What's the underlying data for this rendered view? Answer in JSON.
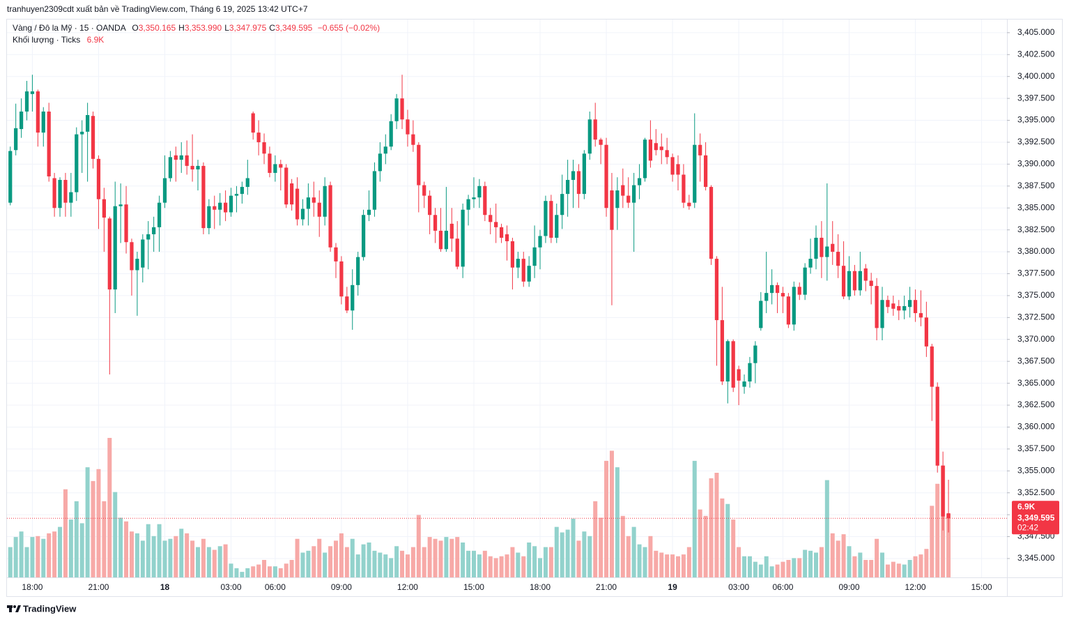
{
  "header": {
    "publisher": "tranhuyen2309cdt xuất bản về TradingView.com, Tháng 6 19, 2025 13:42 UTC+7"
  },
  "chart_data": {
    "type": "candlestick",
    "title": "Vàng / Đô la Mỹ · 15 · OANDA",
    "legend_items": [
      {
        "key": "O",
        "label": "3,350.165"
      },
      {
        "key": "H",
        "label": "3,353.990"
      },
      {
        "key": "L",
        "label": "3,347.975"
      },
      {
        "key": "C",
        "label": "3,349.595"
      }
    ],
    "change_label": "−0.655 (−0.02%)",
    "volume_title": "Khối lượng · Ticks",
    "volume_label": "6.9K",
    "countdown": "02:42",
    "colors": {
      "up": "#089981",
      "down": "#f23645",
      "volume_up": "#92d2cc",
      "volume_down": "#f7a9a7"
    },
    "grid": true,
    "xlim": [
      -0.6,
      180.6
    ],
    "xticks": [
      {
        "value": 4,
        "label": "18:00"
      },
      {
        "value": 16,
        "label": "21:00"
      },
      {
        "value": 28,
        "label": "18"
      },
      {
        "value": 40,
        "label": "03:00"
      },
      {
        "value": 48,
        "label": "06:00"
      },
      {
        "value": 60,
        "label": "09:00"
      },
      {
        "value": 72,
        "label": "12:00"
      },
      {
        "value": 84,
        "label": "15:00"
      },
      {
        "value": 96,
        "label": "18:00"
      },
      {
        "value": 108,
        "label": "21:00"
      },
      {
        "value": 120,
        "label": "19"
      },
      {
        "value": 132,
        "label": "03:00"
      },
      {
        "value": 140,
        "label": "06:00"
      },
      {
        "value": 152,
        "label": "09:00"
      },
      {
        "value": 164,
        "label": "12:00"
      },
      {
        "value": 176,
        "label": "15:00"
      }
    ],
    "ylim": [
      3342.85,
      3406.5
    ],
    "yticks": [
      {
        "value": 3345,
        "label": "3,345.000"
      },
      {
        "value": 3347.5,
        "label": "3,347.500"
      },
      {
        "value": 3350,
        "label": "3,350.000"
      },
      {
        "value": 3352.5,
        "label": "3,352.500"
      },
      {
        "value": 3355,
        "label": "3,355.000"
      },
      {
        "value": 3357.5,
        "label": "3,357.500"
      },
      {
        "value": 3360,
        "label": "3,360.000"
      },
      {
        "value": 3362.5,
        "label": "3,362.500"
      },
      {
        "value": 3365,
        "label": "3,365.000"
      },
      {
        "value": 3367.5,
        "label": "3,367.500"
      },
      {
        "value": 3370,
        "label": "3,370.000"
      },
      {
        "value": 3372.5,
        "label": "3,372.500"
      },
      {
        "value": 3375,
        "label": "3,375.000"
      },
      {
        "value": 3377.5,
        "label": "3,377.500"
      },
      {
        "value": 3380,
        "label": "3,380.000"
      },
      {
        "value": 3382.5,
        "label": "3,382.500"
      },
      {
        "value": 3385,
        "label": "3,385.000"
      },
      {
        "value": 3387.5,
        "label": "3,387.500"
      },
      {
        "value": 3390,
        "label": "3,390.000"
      },
      {
        "value": 3392.5,
        "label": "3,392.500"
      },
      {
        "value": 3395,
        "label": "3,395.000"
      },
      {
        "value": 3397.5,
        "label": "3,397.500"
      },
      {
        "value": 3400,
        "label": "3,400.000"
      },
      {
        "value": 3402.5,
        "label": "3,402.500"
      },
      {
        "value": 3405,
        "label": "3,405.000"
      }
    ],
    "open": [
      3385.6,
      3391.6,
      3394,
      3396,
      3398,
      3398.3,
      3393.6,
      3396,
      3388.4,
      3385,
      3388.2,
      3385.6,
      3386.8,
      3393.4,
      3393.7,
      3395.5,
      3390.6,
      3386,
      3383.8,
      3375.7,
      3385.2,
      3385.4,
      3381.1,
      3377.9,
      3378.2,
      3381.4,
      3382,
      3382.8,
      3385.6,
      3388.4,
      3391,
      3390.5,
      3391,
      3389.8,
      3389.4,
      3389.8,
      3382.7,
      3385.2,
      3384.8,
      3385.6,
      3384.5,
      3386.4,
      3386.6,
      3387.4,
      3395.8,
      3393.6,
      3392.5,
      3391.2,
      3389,
      3390,
      3389.6,
      3387.8,
      3387.2,
      3383.7,
      3384.9,
      3386.2,
      3385.6,
      3384,
      3387.6,
      3380.5,
      3378.9,
      3374.9,
      3373.3,
      3376.2,
      3379.4,
      3384.2,
      3384.8,
      3389.2,
      3391.2,
      3392,
      3394.9,
      3397.5,
      3395.1,
      3393.4,
      3392.2,
      3387.6,
      3386.4,
      3384.2,
      3382.4,
      3380.3,
      3383.2,
      3381.5,
      3378.3,
      3384.8,
      3386,
      3386.2,
      3387.5,
      3384.2,
      3383.4,
      3382.8,
      3382,
      3381.2,
      3378.2,
      3379.2,
      3376.6,
      3378.4,
      3380.5,
      3381.8,
      3385.8,
      3381.6,
      3384.2,
      3386.6,
      3388.2,
      3389.2,
      3386.6,
      3391.2,
      3395.1,
      3392.8,
      3392.2,
      3387,
      3385,
      3387.6,
      3386.4,
      3385.6,
      3387.6,
      3388.4,
      3392.8,
      3392.4,
      3392,
      3391.6,
      3390.8,
      3390,
      3388.8,
      3385.6,
      3385.6,
      3392.2,
      3391,
      3387.4,
      3379.2,
      3372.2,
      3365.2,
      3369.8,
      3366.6,
      3364.6,
      3365.2,
      3367.3,
      3371.3,
      3374.4,
      3375.3,
      3376.2,
      3375.3,
      3374.9,
      3371.7,
      3376,
      3375.1,
      3378.2,
      3379.2,
      3381.6,
      3379.4,
      3380.9,
      3380,
      3378.4,
      3374.9,
      3377.8,
      3375.6,
      3378.1,
      3376.7,
      3376.1,
      3371.3,
      3374.5,
      3374.1,
      3373.8,
      3373.3,
      3373.7,
      3374.5,
      3373,
      3372.5,
      3369.2,
      3364.6,
      3355.6,
      3350.165
    ],
    "high": [
      3392,
      3396.9,
      3397.5,
      3399.5,
      3400.2,
      3398.5,
      3396.5,
      3397,
      3389,
      3388.5,
      3389,
      3389,
      3394.2,
      3395,
      3397,
      3396,
      3391,
      3387.3,
      3384,
      3388,
      3387.8,
      3387.5,
      3381.5,
      3380,
      3382,
      3383.5,
      3384,
      3386.4,
      3391,
      3391.5,
      3392,
      3392.5,
      3392.7,
      3393.4,
      3390.5,
      3390.2,
      3386,
      3386.4,
      3386.7,
      3387,
      3387.3,
      3387.5,
      3388,
      3390.5,
      3396,
      3395,
      3393.5,
      3392,
      3391,
      3390.5,
      3390,
      3388.3,
      3388.5,
      3386,
      3387.8,
      3388,
      3387,
      3388.5,
      3388,
      3381,
      3379.5,
      3376,
      3378,
      3380,
      3384.8,
      3387,
      3390.2,
      3392.5,
      3393.4,
      3395.7,
      3398,
      3400.2,
      3396.2,
      3395,
      3392.5,
      3388,
      3387,
      3385,
      3385,
      3387.4,
      3385,
      3383.5,
      3385.5,
      3386.5,
      3388.5,
      3388.3,
      3388,
      3385,
      3385.5,
      3383.2,
      3383,
      3381.6,
      3380,
      3380,
      3379.5,
      3383,
      3382.5,
      3386.4,
      3386.5,
      3385.5,
      3388.8,
      3390.5,
      3390.5,
      3390,
      3391.6,
      3396,
      3397,
      3393,
      3393,
      3389,
      3388.5,
      3389.5,
      3388.5,
      3389,
      3390,
      3393,
      3395,
      3394,
      3393.5,
      3393,
      3391.2,
      3391,
      3390,
      3386.5,
      3395.8,
      3393.5,
      3392.5,
      3387.6,
      3379.5,
      3376,
      3370,
      3370,
      3367,
      3366,
      3368,
      3369.8,
      3375.4,
      3380,
      3378,
      3376.5,
      3376,
      3375.3,
      3376.6,
      3376.5,
      3378.7,
      3381.5,
      3383,
      3383.5,
      3387.8,
      3383.5,
      3382,
      3381.2,
      3379.5,
      3378.5,
      3380,
      3378.6,
      3377.6,
      3377,
      3376,
      3375,
      3375,
      3374.5,
      3375,
      3376,
      3375.7,
      3375.6,
      3374.3,
      3369.5,
      3365.1,
      3357.2,
      3353.99
    ],
    "low": [
      3385.3,
      3391,
      3393,
      3395,
      3396,
      3392,
      3392,
      3388,
      3384,
      3384,
      3384,
      3384,
      3385.8,
      3389,
      3388,
      3389.5,
      3382.6,
      3380,
      3366,
      3373,
      3381,
      3379.8,
      3375,
      3372.7,
      3376.5,
      3378,
      3380,
      3380,
      3385,
      3388,
      3388,
      3389,
      3388.8,
      3388,
      3387,
      3382,
      3382,
      3382.6,
      3383,
      3383.5,
      3384,
      3384.5,
      3385.5,
      3386.5,
      3392.8,
      3391,
      3390,
      3388.5,
      3388,
      3387,
      3385,
      3384.7,
      3383,
      3383,
      3383,
      3384,
      3381.7,
      3383,
      3380,
      3377,
      3374,
      3373,
      3371.1,
      3375,
      3379,
      3383.5,
      3384,
      3388,
      3390,
      3391.6,
      3394,
      3394,
      3392,
      3391.4,
      3384.5,
      3385,
      3382,
      3381,
      3380,
      3380,
      3380,
      3378,
      3377,
      3383,
      3385,
      3385,
      3383.5,
      3382,
      3381,
      3381,
      3379,
      3375.7,
      3377,
      3376,
      3376,
      3377,
      3378,
      3381,
      3381,
      3381,
      3382.6,
      3384,
      3385,
      3385,
      3386,
      3390.5,
      3392,
      3390,
      3384,
      3373.9,
      3382.5,
      3385,
      3385,
      3380,
      3386,
      3388,
      3389.6,
      3391,
      3390,
      3390,
      3388,
      3387,
      3385,
      3384.8,
      3385,
      3388,
      3387,
      3378.5,
      3367,
      3364.8,
      3362.7,
      3364,
      3362.5,
      3363.8,
      3364.5,
      3365,
      3371,
      3373,
      3374,
      3373,
      3373,
      3371.3,
      3371,
      3374.5,
      3374.5,
      3377.5,
      3378,
      3377,
      3376.7,
      3378.5,
      3377,
      3374.6,
      3374.5,
      3375,
      3375,
      3375.5,
      3374,
      3369.9,
      3369.9,
      3373,
      3372.7,
      3372.2,
      3372.3,
      3372.5,
      3372,
      3371.5,
      3368,
      3360.7,
      3354.8,
      3348.2,
      3347.975
    ],
    "close": [
      3391.5,
      3394.1,
      3396,
      3398.3,
      3398.3,
      3393.6,
      3396,
      3388.6,
      3385,
      3388.2,
      3385.6,
      3386.8,
      3393.4,
      3393.7,
      3395.6,
      3390.6,
      3386,
      3383.9,
      3375.7,
      3385.2,
      3385.4,
      3381.1,
      3377.9,
      3379.2,
      3381.4,
      3382,
      3382.8,
      3385.6,
      3388.4,
      3390.8,
      3390.5,
      3391,
      3389.8,
      3389.4,
      3389.8,
      3382.7,
      3385.2,
      3384.8,
      3385.6,
      3384.5,
      3386.4,
      3386.6,
      3387.4,
      3388.4,
      3393.6,
      3392.5,
      3391.2,
      3389,
      3390,
      3389.6,
      3385.4,
      3385.4,
      3383.7,
      3384.9,
      3386.2,
      3385.6,
      3384,
      3387.5,
      3380.5,
      3378.9,
      3374.9,
      3373.3,
      3376.2,
      3379.4,
      3384.2,
      3384.8,
      3389.2,
      3391.2,
      3392,
      3394.9,
      3397.5,
      3395.1,
      3393.4,
      3392.2,
      3387.6,
      3386.4,
      3384.2,
      3382.4,
      3380.3,
      3382.4,
      3381.5,
      3378.3,
      3384.8,
      3386,
      3386.2,
      3387.5,
      3384.2,
      3383.4,
      3382.8,
      3381.6,
      3381.2,
      3378.2,
      3379.2,
      3376.6,
      3378.4,
      3380.5,
      3381.8,
      3385.8,
      3381.6,
      3384.2,
      3386.6,
      3388.2,
      3389.2,
      3386.6,
      3391.2,
      3395.1,
      3392.8,
      3392.2,
      3385,
      3382.5,
      3387,
      3386.4,
      3385.6,
      3387.6,
      3388.4,
      3392.8,
      3390.4,
      3391.6,
      3391.6,
      3390.8,
      3388.8,
      3388.8,
      3385.6,
      3385.2,
      3392.2,
      3391,
      3387.4,
      3379.2,
      3372.2,
      3365.2,
      3369.8,
      3364.5,
      3365.3,
      3365.2,
      3367.3,
      3369.3,
      3374.4,
      3375.3,
      3376.2,
      3375.3,
      3374.9,
      3371.7,
      3376,
      3375.1,
      3378.2,
      3379.2,
      3381.6,
      3379.4,
      3380.6,
      3380,
      3378.4,
      3374.9,
      3377.8,
      3375.6,
      3377.8,
      3376.7,
      3376.1,
      3371.3,
      3374.5,
      3373.7,
      3373.5,
      3373.3,
      3373.8,
      3374.5,
      3373,
      3372.5,
      3369.2,
      3364.6,
      3355.6,
      3349.8,
      3349.595
    ],
    "volume": [
      3300,
      4400,
      5000,
      3300,
      4400,
      4500,
      4200,
      4800,
      5000,
      5500,
      9600,
      6300,
      8300,
      5900,
      12000,
      10500,
      11800,
      8300,
      15200,
      9300,
      6500,
      6100,
      5000,
      4800,
      4000,
      5800,
      4500,
      5800,
      4000,
      4200,
      4500,
      5300,
      4800,
      4000,
      3300,
      4200,
      3300,
      3000,
      3400,
      3600,
      1500,
      1000,
      600,
      1000,
      1200,
      1400,
      1900,
      1200,
      1200,
      1000,
      1500,
      1900,
      4200,
      2700,
      2900,
      3400,
      4200,
      2700,
      3400,
      4000,
      4800,
      3300,
      4200,
      2500,
      3600,
      3800,
      2900,
      2700,
      2500,
      2100,
      3400,
      2900,
      2500,
      3300,
      6800,
      3300,
      4400,
      4200,
      4000,
      4400,
      4200,
      4400,
      3800,
      2900,
      2900,
      2500,
      2900,
      2300,
      2100,
      2300,
      2500,
      3300,
      2700,
      2300,
      3800,
      3400,
      2100,
      3300,
      3300,
      5500,
      4900,
      5200,
      6400,
      4000,
      5000,
      4500,
      8300,
      6500,
      12700,
      13800,
      12000,
      6700,
      4500,
      5500,
      3600,
      3300,
      4500,
      2900,
      2700,
      2500,
      2500,
      2300,
      2500,
      3300,
      12700,
      7400,
      6700,
      10800,
      11400,
      8600,
      8000,
      6300,
      3300,
      2300,
      2300,
      1700,
      1400,
      2300,
      1200,
      1400,
      1700,
      1900,
      2100,
      2100,
      3000,
      2900,
      2700,
      3300,
      10600,
      4800,
      4000,
      4700,
      3400,
      2300,
      2700,
      1900,
      1900,
      4200,
      2700,
      1400,
      1700,
      1500,
      1400,
      1900,
      2300,
      2500,
      3100,
      7800,
      10200,
      12200,
      6900
    ]
  },
  "footer": {
    "brand": "TradingView"
  }
}
